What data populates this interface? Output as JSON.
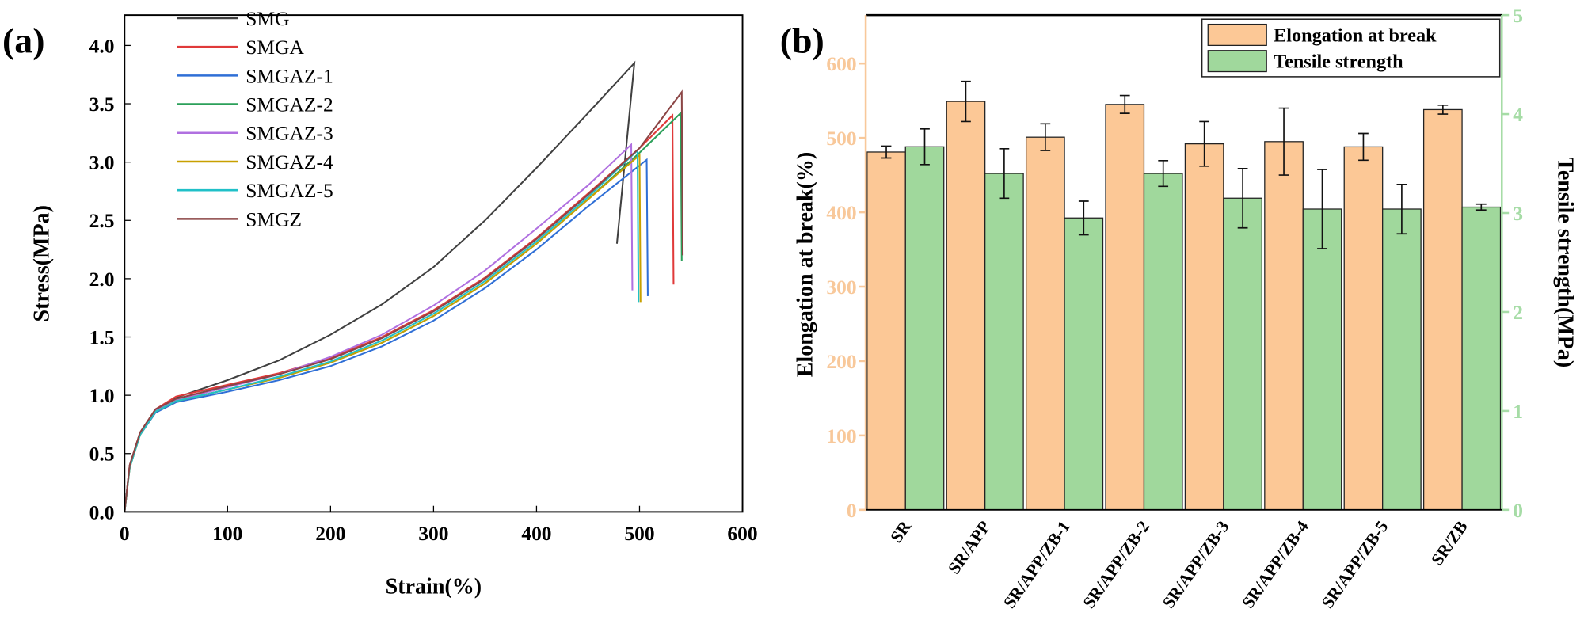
{
  "chart_data": [
    {
      "panel_label": "(a)",
      "type": "line",
      "xlabel": "Strain(%)",
      "ylabel": "Stress(MPa)",
      "xlim": [
        0,
        600
      ],
      "ylim": [
        0,
        4.26
      ],
      "xticks": [
        "0",
        "100",
        "200",
        "300",
        "400",
        "500",
        "600"
      ],
      "yticks": [
        "0.0",
        "0.5",
        "1.0",
        "1.5",
        "2.0",
        "2.5",
        "3.0",
        "3.5",
        "4.0"
      ],
      "grid": false,
      "legend_position": "top-left",
      "series": [
        {
          "name": "SMG",
          "color": "#404040",
          "points": [
            [
              0,
              0
            ],
            [
              5,
              0.4
            ],
            [
              15,
              0.68
            ],
            [
              30,
              0.88
            ],
            [
              50,
              0.98
            ],
            [
              100,
              1.13
            ],
            [
              150,
              1.3
            ],
            [
              200,
              1.52
            ],
            [
              250,
              1.78
            ],
            [
              300,
              2.1
            ],
            [
              350,
              2.5
            ],
            [
              400,
              2.95
            ],
            [
              450,
              3.42
            ],
            [
              495,
              3.85
            ],
            [
              478,
              2.3
            ]
          ]
        },
        {
          "name": "SMGA",
          "color": "#e03a3a",
          "points": [
            [
              0,
              0
            ],
            [
              5,
              0.4
            ],
            [
              15,
              0.68
            ],
            [
              30,
              0.88
            ],
            [
              50,
              0.99
            ],
            [
              100,
              1.09
            ],
            [
              150,
              1.19
            ],
            [
              200,
              1.32
            ],
            [
              250,
              1.5
            ],
            [
              300,
              1.73
            ],
            [
              350,
              2.01
            ],
            [
              400,
              2.35
            ],
            [
              450,
              2.73
            ],
            [
              500,
              3.12
            ],
            [
              532,
              3.4
            ],
            [
              533,
              1.95
            ]
          ]
        },
        {
          "name": "SMGAZ-1",
          "color": "#2f6fd6",
          "points": [
            [
              0,
              0
            ],
            [
              5,
              0.38
            ],
            [
              15,
              0.66
            ],
            [
              30,
              0.85
            ],
            [
              50,
              0.94
            ],
            [
              100,
              1.03
            ],
            [
              150,
              1.13
            ],
            [
              200,
              1.25
            ],
            [
              250,
              1.42
            ],
            [
              300,
              1.64
            ],
            [
              350,
              1.92
            ],
            [
              400,
              2.25
            ],
            [
              450,
              2.62
            ],
            [
              507,
              3.02
            ],
            [
              508,
              1.85
            ]
          ]
        },
        {
          "name": "SMGAZ-2",
          "color": "#2ca05a",
          "points": [
            [
              0,
              0
            ],
            [
              5,
              0.38
            ],
            [
              15,
              0.66
            ],
            [
              30,
              0.86
            ],
            [
              50,
              0.95
            ],
            [
              100,
              1.05
            ],
            [
              150,
              1.15
            ],
            [
              200,
              1.28
            ],
            [
              250,
              1.45
            ],
            [
              300,
              1.68
            ],
            [
              350,
              1.96
            ],
            [
              400,
              2.3
            ],
            [
              450,
              2.68
            ],
            [
              500,
              3.08
            ],
            [
              540,
              3.42
            ],
            [
              541,
              2.15
            ]
          ]
        },
        {
          "name": "SMGAZ-3",
          "color": "#b070e0",
          "points": [
            [
              0,
              0
            ],
            [
              5,
              0.39
            ],
            [
              15,
              0.67
            ],
            [
              30,
              0.87
            ],
            [
              50,
              0.96
            ],
            [
              100,
              1.07
            ],
            [
              150,
              1.18
            ],
            [
              200,
              1.33
            ],
            [
              250,
              1.52
            ],
            [
              300,
              1.77
            ],
            [
              350,
              2.07
            ],
            [
              400,
              2.43
            ],
            [
              450,
              2.8
            ],
            [
              492,
              3.15
            ],
            [
              493,
              1.9
            ]
          ]
        },
        {
          "name": "SMGAZ-4",
          "color": "#c8a000",
          "points": [
            [
              0,
              0
            ],
            [
              5,
              0.38
            ],
            [
              15,
              0.66
            ],
            [
              30,
              0.86
            ],
            [
              50,
              0.95
            ],
            [
              100,
              1.05
            ],
            [
              150,
              1.15
            ],
            [
              200,
              1.28
            ],
            [
              250,
              1.45
            ],
            [
              300,
              1.68
            ],
            [
              350,
              1.96
            ],
            [
              400,
              2.3
            ],
            [
              450,
              2.68
            ],
            [
              500,
              3.06
            ],
            [
              501,
              1.8
            ]
          ]
        },
        {
          "name": "SMGAZ-5",
          "color": "#20c0c8",
          "points": [
            [
              0,
              0
            ],
            [
              5,
              0.38
            ],
            [
              15,
              0.66
            ],
            [
              30,
              0.86
            ],
            [
              50,
              0.95
            ],
            [
              100,
              1.05
            ],
            [
              150,
              1.16
            ],
            [
              200,
              1.29
            ],
            [
              250,
              1.47
            ],
            [
              300,
              1.7
            ],
            [
              350,
              1.98
            ],
            [
              400,
              2.32
            ],
            [
              450,
              2.7
            ],
            [
              498,
              3.1
            ],
            [
              499,
              1.8
            ]
          ]
        },
        {
          "name": "SMGZ",
          "color": "#8b4545",
          "points": [
            [
              0,
              0
            ],
            [
              5,
              0.4
            ],
            [
              15,
              0.68
            ],
            [
              30,
              0.88
            ],
            [
              50,
              0.97
            ],
            [
              100,
              1.08
            ],
            [
              150,
              1.18
            ],
            [
              200,
              1.31
            ],
            [
              250,
              1.49
            ],
            [
              300,
              1.72
            ],
            [
              350,
              2.0
            ],
            [
              400,
              2.34
            ],
            [
              450,
              2.72
            ],
            [
              500,
              3.12
            ],
            [
              541,
              3.6
            ],
            [
              542,
              2.2
            ]
          ]
        }
      ]
    },
    {
      "panel_label": "(b)",
      "type": "bar",
      "categories": [
        "SR",
        "SR/APP",
        "SR/APP/ZB-1",
        "SR/APP/ZB-2",
        "SR/APP/ZB-3",
        "SR/APP/ZB-4",
        "SR/APP/ZB-5",
        "SR/ZB"
      ],
      "ylabel": "Elongation at break(%)",
      "y2label": "Tensile strength(MPa)",
      "ylim": [
        0,
        665
      ],
      "y2lim": [
        0,
        5
      ],
      "yticks": [
        "0",
        "100",
        "200",
        "300",
        "400",
        "500",
        "600"
      ],
      "y2ticks": [
        "0",
        "1",
        "2",
        "3",
        "4",
        "5"
      ],
      "left_axis_color": "#f8c89a",
      "right_axis_color": "#a6dca6",
      "grid": false,
      "legend_position": "top-right",
      "series": [
        {
          "name": "Elongation at break",
          "axis": "left",
          "color": "#fcc896",
          "values": [
            481,
            549,
            501,
            545,
            492,
            495,
            488,
            538
          ],
          "errors": [
            8,
            27,
            18,
            12,
            30,
            45,
            18,
            6
          ]
        },
        {
          "name": "Tensile strength",
          "axis": "right",
          "color": "#a0d89c",
          "values": [
            3.67,
            3.4,
            2.95,
            3.4,
            3.15,
            3.04,
            3.04,
            3.06
          ],
          "errors": [
            0.18,
            0.25,
            0.17,
            0.13,
            0.3,
            0.4,
            0.25,
            0.03
          ]
        }
      ]
    }
  ]
}
